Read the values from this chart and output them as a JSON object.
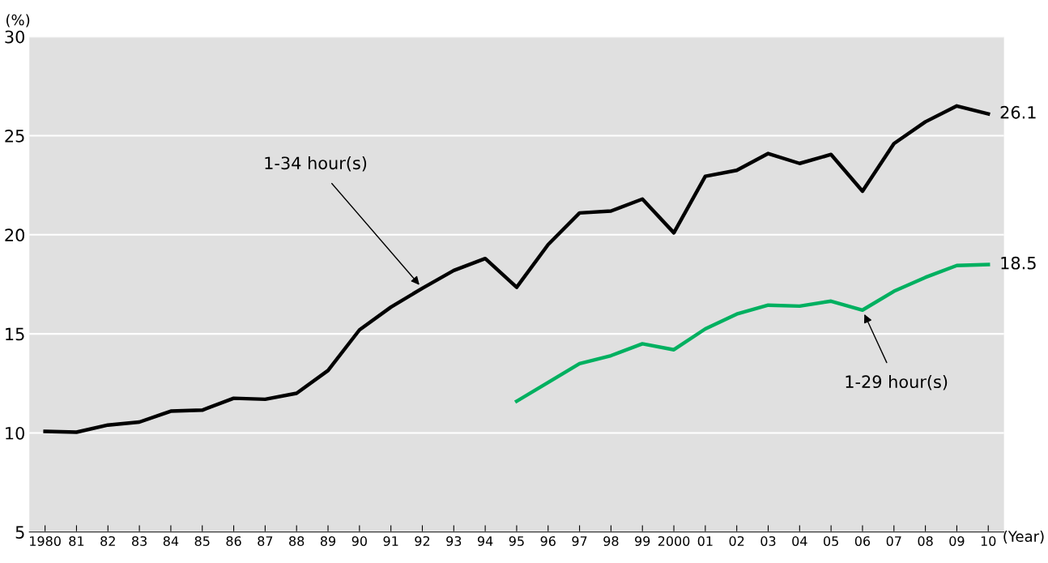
{
  "chart_data": {
    "type": "line",
    "ylabel": "(%)",
    "xlabel": "(Year)",
    "categories": [
      "1980",
      "81",
      "82",
      "83",
      "84",
      "85",
      "86",
      "87",
      "88",
      "89",
      "90",
      "91",
      "92",
      "93",
      "94",
      "95",
      "96",
      "97",
      "98",
      "99",
      "2000",
      "01",
      "02",
      "03",
      "04",
      "05",
      "06",
      "07",
      "08",
      "09",
      "10"
    ],
    "series": [
      {
        "color": "#000000",
        "values": [
          10.08,
          10.04,
          10.4,
          10.55,
          11.1,
          11.15,
          11.75,
          11.7,
          12.0,
          13.15,
          15.2,
          16.35,
          17.3,
          18.2,
          18.8,
          17.35,
          19.5,
          21.1,
          21.2,
          21.8,
          20.1,
          22.95,
          23.25,
          24.1,
          23.6,
          24.05,
          22.2,
          24.6,
          25.7,
          26.5,
          26.1
        ],
        "value_labels": [
          null,
          null,
          null,
          null,
          null,
          null,
          null,
          null,
          null,
          null,
          null,
          null,
          null,
          null,
          null,
          null,
          null,
          null,
          null,
          null,
          null,
          null,
          null,
          null,
          null,
          null,
          null,
          null,
          null,
          null,
          "26.1"
        ]
      },
      {
        "color": "#00b060",
        "values": [
          null,
          null,
          null,
          null,
          null,
          null,
          null,
          null,
          null,
          null,
          null,
          null,
          null,
          null,
          null,
          11.6,
          12.55,
          13.5,
          13.9,
          14.5,
          14.2,
          15.25,
          16.0,
          16.45,
          16.4,
          16.65,
          16.2,
          17.15,
          17.85,
          18.45,
          18.5
        ],
        "value_labels": [
          null,
          null,
          null,
          null,
          null,
          null,
          null,
          null,
          null,
          null,
          null,
          null,
          null,
          null,
          null,
          null,
          null,
          null,
          null,
          null,
          null,
          null,
          null,
          null,
          null,
          null,
          null,
          null,
          null,
          null,
          "18.5"
        ]
      }
    ],
    "ylim": [
      5,
      30
    ],
    "yticks": [
      5,
      10,
      15,
      20,
      25,
      30
    ],
    "grid": "y",
    "legend": false,
    "marker": "none",
    "line_style": "solid",
    "annotations": [
      {
        "text": "1-34 hour(s)",
        "x": "92",
        "y": 17.3
      },
      {
        "text": "1-29 hour(s)",
        "x": "06",
        "y": 16.2
      }
    ]
  }
}
